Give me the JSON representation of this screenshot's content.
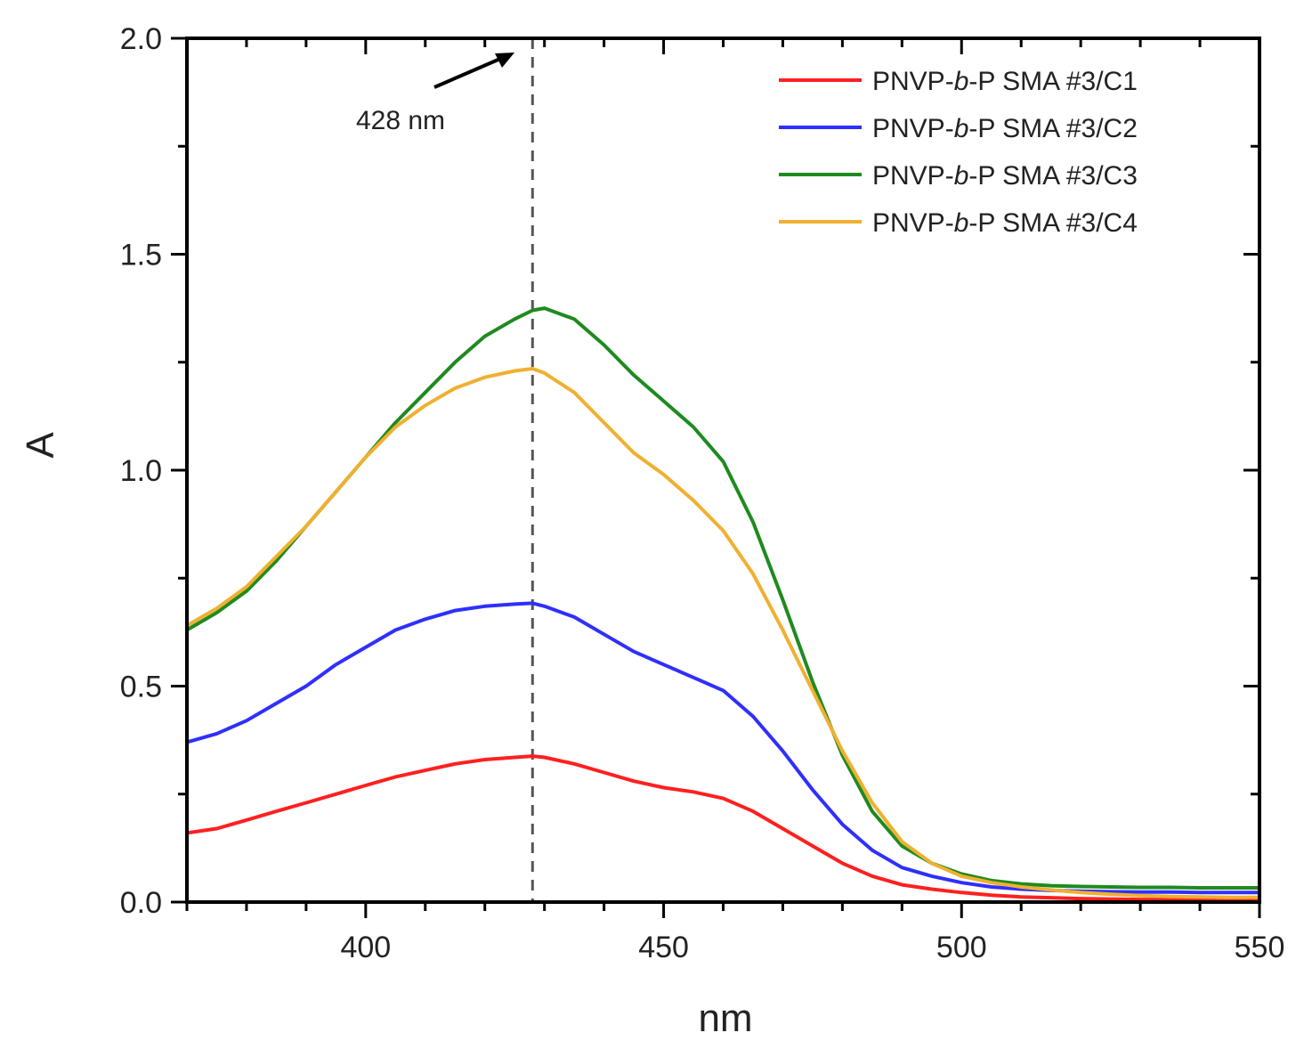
{
  "chart_data": {
    "type": "line",
    "title": "",
    "xlabel": "nm",
    "ylabel": "A",
    "xlim": [
      370,
      550
    ],
    "ylim": [
      0.0,
      2.0
    ],
    "xticks": [
      400,
      450,
      500,
      550
    ],
    "xtick_labels": [
      "400",
      "450",
      "500",
      "550"
    ],
    "yticks": [
      0.0,
      0.5,
      1.0,
      1.5,
      2.0
    ],
    "ytick_labels": [
      "0.0",
      "0.5",
      "1.0",
      "1.5",
      "2.0"
    ],
    "grid": false,
    "legend": {
      "position": "top-right",
      "entries": [
        {
          "prefix": "PNVP-",
          "italic": "b",
          "suffix": "-P SMA #3/C1",
          "color": "#ff2020"
        },
        {
          "prefix": "PNVP-",
          "italic": "b",
          "suffix": "-P SMA #3/C2",
          "color": "#2f2fff"
        },
        {
          "prefix": "PNVP-",
          "italic": "b",
          "suffix": "-P SMA #3/C3",
          "color": "#1f8a1f"
        },
        {
          "prefix": "PNVP-",
          "italic": "b",
          "suffix": "-P SMA #3/C4",
          "color": "#f0b030"
        }
      ]
    },
    "annotation": {
      "text": "428 nm",
      "x": 428
    },
    "x": [
      370,
      375,
      380,
      385,
      390,
      395,
      400,
      405,
      410,
      415,
      420,
      425,
      428,
      430,
      435,
      440,
      445,
      450,
      455,
      460,
      465,
      470,
      475,
      480,
      485,
      490,
      495,
      500,
      505,
      510,
      515,
      520,
      525,
      530,
      535,
      540,
      545,
      550
    ],
    "series": [
      {
        "name": "PNVP-b-P SMA #3/C1",
        "color": "#ff2020",
        "values": [
          0.16,
          0.17,
          0.19,
          0.21,
          0.23,
          0.25,
          0.27,
          0.29,
          0.305,
          0.32,
          0.33,
          0.335,
          0.338,
          0.335,
          0.32,
          0.3,
          0.28,
          0.265,
          0.255,
          0.24,
          0.21,
          0.17,
          0.13,
          0.09,
          0.06,
          0.04,
          0.03,
          0.022,
          0.016,
          0.012,
          0.01,
          0.008,
          0.007,
          0.006,
          0.006,
          0.005,
          0.005,
          0.005
        ]
      },
      {
        "name": "PNVP-b-P SMA #3/C2",
        "color": "#2f2fff",
        "values": [
          0.37,
          0.39,
          0.42,
          0.46,
          0.5,
          0.55,
          0.59,
          0.63,
          0.655,
          0.675,
          0.685,
          0.69,
          0.692,
          0.685,
          0.66,
          0.62,
          0.58,
          0.55,
          0.52,
          0.49,
          0.43,
          0.35,
          0.26,
          0.18,
          0.12,
          0.08,
          0.06,
          0.045,
          0.035,
          0.03,
          0.027,
          0.025,
          0.024,
          0.023,
          0.023,
          0.022,
          0.022,
          0.022
        ]
      },
      {
        "name": "PNVP-b-P SMA #3/C3",
        "color": "#1f8a1f",
        "values": [
          0.63,
          0.67,
          0.72,
          0.79,
          0.87,
          0.95,
          1.03,
          1.11,
          1.18,
          1.25,
          1.31,
          1.35,
          1.37,
          1.375,
          1.35,
          1.29,
          1.22,
          1.16,
          1.1,
          1.02,
          0.88,
          0.7,
          0.51,
          0.34,
          0.21,
          0.13,
          0.09,
          0.065,
          0.05,
          0.042,
          0.038,
          0.036,
          0.035,
          0.034,
          0.034,
          0.033,
          0.033,
          0.033
        ]
      },
      {
        "name": "PNVP-b-P SMA #3/C4",
        "color": "#f0b030",
        "values": [
          0.64,
          0.68,
          0.73,
          0.8,
          0.87,
          0.95,
          1.03,
          1.1,
          1.15,
          1.19,
          1.215,
          1.23,
          1.235,
          1.225,
          1.18,
          1.11,
          1.04,
          0.99,
          0.93,
          0.86,
          0.76,
          0.63,
          0.49,
          0.35,
          0.23,
          0.14,
          0.09,
          0.06,
          0.045,
          0.035,
          0.028,
          0.022,
          0.018,
          0.015,
          0.013,
          0.012,
          0.011,
          0.011
        ]
      }
    ]
  }
}
